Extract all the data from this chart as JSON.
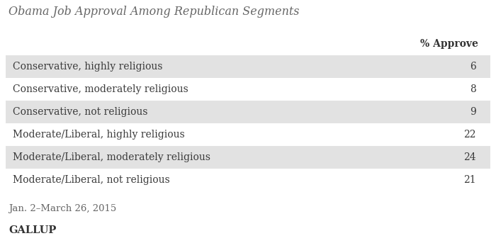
{
  "title": "Obama Job Approval Among Republican Segments",
  "column_header": "% Approve",
  "rows": [
    {
      "label": "Conservative, highly religious",
      "value": "6",
      "shaded": true
    },
    {
      "label": "Conservative, moderately religious",
      "value": "8",
      "shaded": false
    },
    {
      "label": "Conservative, not religious",
      "value": "9",
      "shaded": true
    },
    {
      "label": "Moderate/Liberal, highly religious",
      "value": "22",
      "shaded": false
    },
    {
      "label": "Moderate/Liberal, moderately religious",
      "value": "24",
      "shaded": true
    },
    {
      "label": "Moderate/Liberal, not religious",
      "value": "21",
      "shaded": false
    }
  ],
  "footnote": "Jan. 2–March 26, 2015",
  "source": "GALLUP",
  "bg_color": "#ffffff",
  "shaded_row_color": "#e2e2e2",
  "text_color": "#3a3a3a",
  "title_color": "#666666",
  "footnote_color": "#666666",
  "source_color": "#333333",
  "title_fontsize": 11.5,
  "header_fontsize": 10,
  "row_fontsize": 10,
  "footnote_fontsize": 9.5,
  "source_fontsize": 10.5
}
